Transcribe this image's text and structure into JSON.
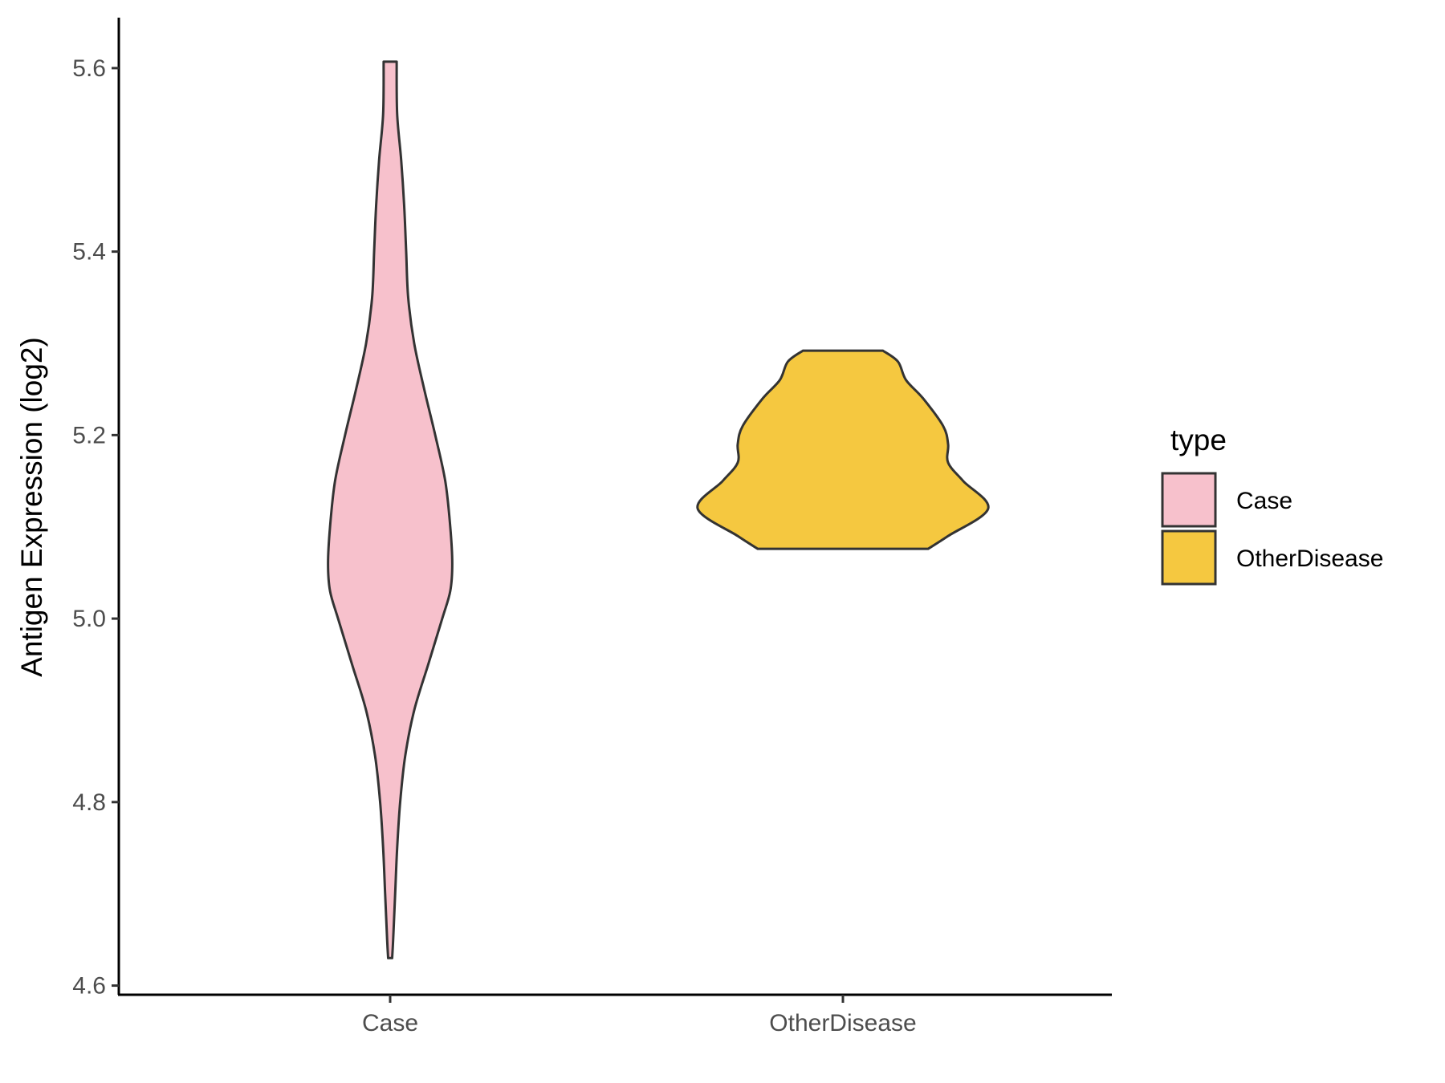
{
  "chart_data": {
    "type": "violin",
    "ylabel": "Antigen Expression (log2)",
    "xlabel": "",
    "ylim": [
      4.59,
      5.655
    ],
    "yticks": [
      4.6,
      4.8,
      5.0,
      5.2,
      5.4,
      5.6
    ],
    "ytick_labels": [
      "4.6",
      "4.8",
      "5.0",
      "5.2",
      "5.4",
      "5.6"
    ],
    "categories": [
      "Case",
      "OtherDisease"
    ],
    "legend": {
      "title": "type",
      "position": "right",
      "entries": [
        {
          "label": "Case",
          "color": "#F7C1CC"
        },
        {
          "label": "OtherDisease",
          "color": "#F5C840"
        }
      ]
    },
    "grid": false,
    "series": [
      {
        "name": "Case",
        "color": "#F7C1CC",
        "min": 4.63,
        "max": 5.607,
        "density": [
          [
            4.63,
            0.02
          ],
          [
            4.65,
            0.03
          ],
          [
            4.7,
            0.05
          ],
          [
            4.75,
            0.07
          ],
          [
            4.8,
            0.1
          ],
          [
            4.85,
            0.15
          ],
          [
            4.9,
            0.24
          ],
          [
            4.95,
            0.38
          ],
          [
            5.0,
            0.52
          ],
          [
            5.03,
            0.6
          ],
          [
            5.06,
            0.62
          ],
          [
            5.1,
            0.6
          ],
          [
            5.15,
            0.55
          ],
          [
            5.2,
            0.45
          ],
          [
            5.25,
            0.34
          ],
          [
            5.3,
            0.24
          ],
          [
            5.35,
            0.18
          ],
          [
            5.4,
            0.16
          ],
          [
            5.45,
            0.14
          ],
          [
            5.5,
            0.11
          ],
          [
            5.55,
            0.07
          ],
          [
            5.607,
            0.065
          ]
        ]
      },
      {
        "name": "OtherDisease",
        "color": "#F5C840",
        "min": 5.076,
        "max": 5.292,
        "density": [
          [
            5.076,
            0.85
          ],
          [
            5.09,
            1.05
          ],
          [
            5.12,
            1.45
          ],
          [
            5.15,
            1.2
          ],
          [
            5.17,
            1.05
          ],
          [
            5.19,
            1.05
          ],
          [
            5.21,
            1.0
          ],
          [
            5.24,
            0.8
          ],
          [
            5.26,
            0.63
          ],
          [
            5.28,
            0.55
          ],
          [
            5.292,
            0.4
          ]
        ]
      }
    ]
  }
}
